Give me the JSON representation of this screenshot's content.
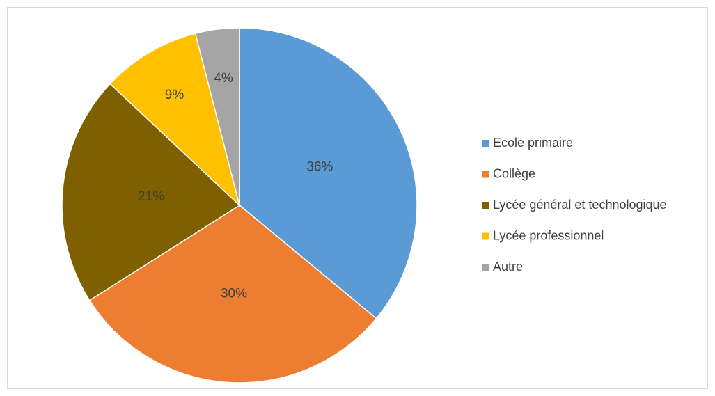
{
  "chart_data": {
    "type": "pie",
    "categories": [
      "Ecole primaire",
      "Collège",
      "Lycée général et technologique",
      "Lycée professionnel",
      "Autre"
    ],
    "values": [
      36,
      30,
      21,
      9,
      4
    ],
    "value_labels": [
      "36%",
      "30%",
      "21%",
      "9%",
      "4%"
    ],
    "colors": [
      "#5b9bd5",
      "#ed7d31",
      "#7f6000",
      "#ffc000",
      "#a5a5a5"
    ],
    "legend": "right"
  }
}
